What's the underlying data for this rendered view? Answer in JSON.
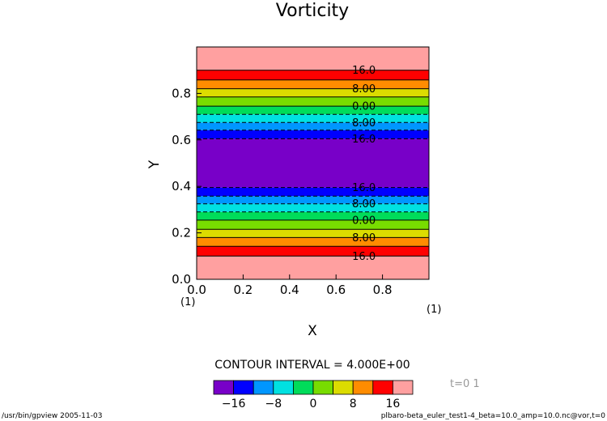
{
  "chart_data": {
    "type": "heatmap",
    "title": "Vorticity",
    "xlabel": "X",
    "ylabel": "Y",
    "xlim": [
      0.0,
      1.0
    ],
    "ylim": [
      0.0,
      1.0
    ],
    "x_ticks": [
      0.0,
      0.2,
      0.4,
      0.6,
      0.8
    ],
    "y_ticks": [
      0.0,
      0.2,
      0.4,
      0.6,
      0.8
    ],
    "x_tick_labels": [
      "0.0",
      "0.2",
      "0.4",
      "0.6",
      "0.8"
    ],
    "y_tick_labels": [
      "0.0",
      "0.2",
      "0.4",
      "0.6",
      "0.8"
    ],
    "x_unit_label": "(1)",
    "y_unit_label": "(1)",
    "contour_interval_text": "CONTOUR INTERVAL = 4.000E+00",
    "contour_interval": 4,
    "time_label": "t=0 1",
    "field": "vorticity bands varying only with Y, symmetric about Y=0.5",
    "bands": [
      {
        "y0": 0.0,
        "y1": 0.1,
        "value_range": ">16",
        "color": "#ffa0a0"
      },
      {
        "y0": 0.1,
        "y1": 0.142,
        "value_range": "12 to 16",
        "color": "#ff0000"
      },
      {
        "y0": 0.142,
        "y1": 0.18,
        "value_range": "8 to 12",
        "color": "#ff8c00"
      },
      {
        "y0": 0.18,
        "y1": 0.215,
        "value_range": "4 to 8",
        "color": "#dcdc00"
      },
      {
        "y0": 0.215,
        "y1": 0.255,
        "value_range": "0 to 4",
        "color": "#78dc00"
      },
      {
        "y0": 0.255,
        "y1": 0.29,
        "value_range": "-4 to 0",
        "color": "#00dc5a"
      },
      {
        "y0": 0.29,
        "y1": 0.325,
        "value_range": "-8 to -4",
        "color": "#00e1e1"
      },
      {
        "y0": 0.325,
        "y1": 0.358,
        "value_range": "-12 to -8",
        "color": "#0096ff"
      },
      {
        "y0": 0.358,
        "y1": 0.395,
        "value_range": "-16 to -12",
        "color": "#0000ff"
      },
      {
        "y0": 0.395,
        "y1": 0.605,
        "value_range": "<-16",
        "color": "#7800c8"
      },
      {
        "y0": 0.605,
        "y1": 0.642,
        "value_range": "-16 to -12",
        "color": "#0000ff"
      },
      {
        "y0": 0.642,
        "y1": 0.675,
        "value_range": "-12 to -8",
        "color": "#0096ff"
      },
      {
        "y0": 0.675,
        "y1": 0.71,
        "value_range": "-8 to -4",
        "color": "#00e1e1"
      },
      {
        "y0": 0.71,
        "y1": 0.745,
        "value_range": "-4 to 0",
        "color": "#00dc5a"
      },
      {
        "y0": 0.745,
        "y1": 0.785,
        "value_range": "0 to 4",
        "color": "#78dc00"
      },
      {
        "y0": 0.785,
        "y1": 0.82,
        "value_range": "4 to 8",
        "color": "#dcdc00"
      },
      {
        "y0": 0.82,
        "y1": 0.858,
        "value_range": "8 to 12",
        "color": "#ff8c00"
      },
      {
        "y0": 0.858,
        "y1": 0.9,
        "value_range": "12 to 16",
        "color": "#ff0000"
      },
      {
        "y0": 0.9,
        "y1": 1.0,
        "value_range": ">16",
        "color": "#ffa0a0"
      }
    ],
    "contour_lines": [
      {
        "y": 0.1,
        "level": 16,
        "style": "solid"
      },
      {
        "y": 0.142,
        "level": 12,
        "style": "solid"
      },
      {
        "y": 0.18,
        "level": 8,
        "style": "solid"
      },
      {
        "y": 0.215,
        "level": 4,
        "style": "solid"
      },
      {
        "y": 0.255,
        "level": 0,
        "style": "solid"
      },
      {
        "y": 0.29,
        "level": -4,
        "style": "dashed"
      },
      {
        "y": 0.325,
        "level": -8,
        "style": "dashed"
      },
      {
        "y": 0.358,
        "level": -12,
        "style": "dashed"
      },
      {
        "y": 0.395,
        "level": -16,
        "style": "dashed"
      },
      {
        "y": 0.605,
        "level": -16,
        "style": "dashed"
      },
      {
        "y": 0.642,
        "level": -12,
        "style": "dashed"
      },
      {
        "y": 0.675,
        "level": -8,
        "style": "dashed"
      },
      {
        "y": 0.71,
        "level": -4,
        "style": "dashed"
      },
      {
        "y": 0.745,
        "level": 0,
        "style": "solid"
      },
      {
        "y": 0.785,
        "level": 4,
        "style": "solid"
      },
      {
        "y": 0.82,
        "level": 8,
        "style": "solid"
      },
      {
        "y": 0.858,
        "level": 12,
        "style": "solid"
      },
      {
        "y": 0.9,
        "level": 16,
        "style": "solid"
      }
    ],
    "contour_labels": [
      {
        "y": 0.1,
        "text": "16.0"
      },
      {
        "y": 0.18,
        "text": "8.00"
      },
      {
        "y": 0.255,
        "text": "0.00"
      },
      {
        "y": 0.325,
        "text": "8.00"
      },
      {
        "y": 0.395,
        "text": "16.0"
      },
      {
        "y": 0.605,
        "text": "16.0"
      },
      {
        "y": 0.675,
        "text": "8.00"
      },
      {
        "y": 0.745,
        "text": "0.00"
      },
      {
        "y": 0.82,
        "text": "8.00"
      },
      {
        "y": 0.9,
        "text": "16.0"
      }
    ],
    "colorbar": {
      "colors": [
        "#7800c8",
        "#0000ff",
        "#0096ff",
        "#00e1e1",
        "#00dc5a",
        "#78dc00",
        "#dcdc00",
        "#ff8c00",
        "#ff0000",
        "#ffa0a0"
      ],
      "boundaries": [
        -16,
        -12,
        -8,
        -4,
        0,
        4,
        8,
        12,
        16
      ],
      "tick_labels": [
        {
          "boundary_index": 0,
          "text": "−16"
        },
        {
          "boundary_index": 2,
          "text": "−8"
        },
        {
          "boundary_index": 4,
          "text": "0"
        },
        {
          "boundary_index": 6,
          "text": "8"
        },
        {
          "boundary_index": 8,
          "text": "16"
        }
      ]
    }
  },
  "footer": {
    "left": "/usr/bin/gpview   2005-11-03",
    "right": "plbaro-beta_euler_test1-4_beta=10.0_amp=10.0.nc@vor,t=0"
  }
}
